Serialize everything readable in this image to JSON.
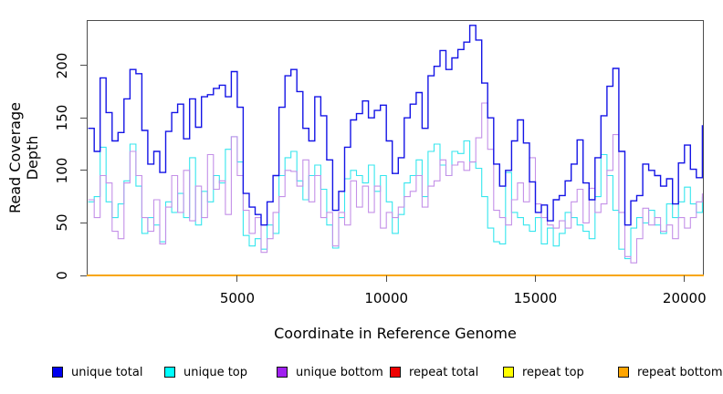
{
  "chart_data": {
    "type": "line",
    "title": "",
    "xlabel": "Coordinate in Reference Genome",
    "ylabel": "Read Coverage Depth",
    "xlim": [
      -50,
      20650
    ],
    "ylim": [
      0,
      243
    ],
    "x_ticks": [
      5000,
      10000,
      15000,
      20000
    ],
    "y_ticks": [
      0,
      50,
      100,
      150,
      200
    ],
    "grid": false,
    "legend_position": "bottom",
    "x_start": 0,
    "x_step": 200,
    "axis_color": "#4d4d4d",
    "series": [
      {
        "name": "unique total",
        "color": "#1414e6",
        "legend_fill": "#0000ee",
        "values": [
          140,
          118,
          188,
          155,
          128,
          136,
          168,
          196,
          192,
          138,
          106,
          118,
          98,
          137,
          155,
          163,
          130,
          168,
          141,
          170,
          172,
          178,
          181,
          170,
          194,
          160,
          78,
          65,
          58,
          48,
          70,
          95,
          160,
          190,
          196,
          175,
          140,
          128,
          170,
          152,
          110,
          62,
          80,
          122,
          148,
          154,
          166,
          150,
          157,
          162,
          128,
          97,
          112,
          150,
          163,
          174,
          140,
          190,
          199,
          214,
          196,
          207,
          215,
          222,
          238,
          224,
          183,
          150,
          106,
          85,
          100,
          128,
          148,
          126,
          89,
          60,
          67,
          52,
          72,
          76,
          90,
          106,
          129,
          88,
          72,
          112,
          152,
          180,
          197,
          118,
          48,
          71,
          76,
          106,
          100,
          95,
          85,
          92,
          68,
          107,
          124,
          101,
          93,
          143
        ]
      },
      {
        "name": "unique top",
        "color": "#35e6ee",
        "legend_fill": "#00ffff",
        "values": [
          70,
          75,
          122,
          70,
          55,
          68,
          90,
          125,
          85,
          40,
          55,
          48,
          32,
          70,
          60,
          78,
          55,
          112,
          48,
          80,
          70,
          95,
          88,
          120,
          132,
          108,
          38,
          28,
          35,
          25,
          48,
          40,
          95,
          112,
          118,
          90,
          72,
          95,
          105,
          82,
          48,
          26,
          55,
          92,
          100,
          95,
          88,
          105,
          80,
          95,
          70,
          40,
          58,
          88,
          95,
          110,
          75,
          118,
          125,
          105,
          95,
          118,
          116,
          128,
          108,
          102,
          75,
          45,
          32,
          30,
          98,
          60,
          55,
          48,
          42,
          55,
          30,
          45,
          28,
          40,
          60,
          55,
          48,
          42,
          35,
          75,
          115,
          95,
          62,
          25,
          16,
          45,
          55,
          50,
          62,
          48,
          40,
          68,
          55,
          70,
          84,
          68,
          60,
          75
        ]
      },
      {
        "name": "unique bottom",
        "color": "#c490e8",
        "legend_fill": "#a020f0",
        "values": [
          72,
          55,
          95,
          88,
          42,
          35,
          88,
          118,
          95,
          55,
          42,
          72,
          30,
          65,
          95,
          60,
          100,
          52,
          85,
          55,
          115,
          82,
          90,
          58,
          132,
          95,
          62,
          40,
          55,
          22,
          35,
          60,
          75,
          100,
          99,
          85,
          110,
          70,
          95,
          55,
          60,
          28,
          60,
          48,
          90,
          65,
          85,
          60,
          85,
          45,
          60,
          55,
          65,
          75,
          80,
          95,
          65,
          85,
          90,
          110,
          95,
          105,
          108,
          100,
          108,
          131,
          164,
          120,
          62,
          55,
          48,
          72,
          88,
          70,
          112,
          68,
          55,
          48,
          45,
          52,
          45,
          70,
          82,
          50,
          83,
          60,
          68,
          100,
          134,
          60,
          18,
          12,
          35,
          64,
          48,
          55,
          42,
          48,
          35,
          55,
          45,
          55,
          70,
          78
        ]
      },
      {
        "name": "repeat total",
        "color": "#e60000",
        "legend_fill": "#ee0000",
        "constant": 0
      },
      {
        "name": "repeat top",
        "color": "#ffff00",
        "legend_fill": "#ffff00",
        "constant": 0
      },
      {
        "name": "repeat bottom",
        "color": "#ffa500",
        "legend_fill": "#ffa500",
        "constant": 0
      }
    ],
    "legend_item_lefts": [
      57,
      180,
      303,
      427,
      551,
      677
    ]
  }
}
